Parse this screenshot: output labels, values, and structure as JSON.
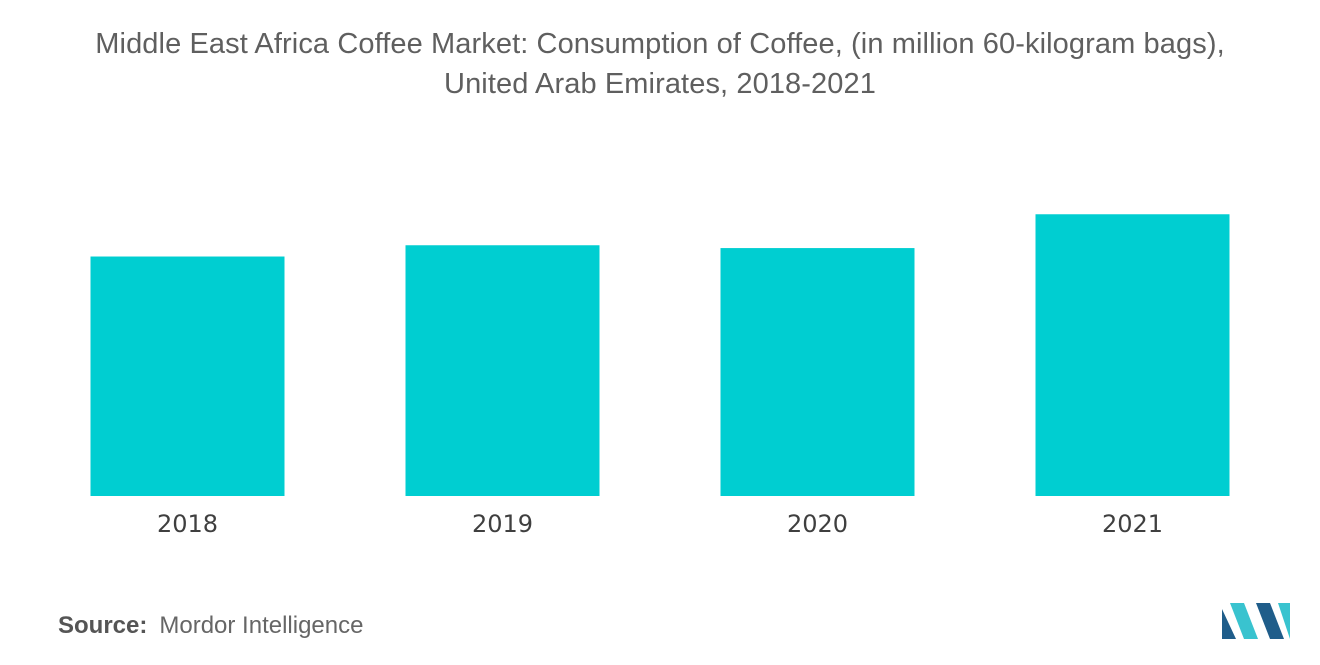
{
  "title": {
    "line1": "Middle East Africa Coffee Market: Consumption of Coffee, (in million 60-kilogram bags),",
    "line2": "United Arab Emirates, 2018-2021"
  },
  "source": {
    "label": "Source:",
    "value": "Mordor Intelligence"
  },
  "colors": {
    "bar": "#00ced1",
    "axis_text": "#3f3f3f",
    "logo_dark": "#1f5d8a",
    "logo_light": "#39c3cf"
  },
  "logo": {
    "icon": "mordor-intelligence-logo-icon"
  },
  "chart_data": {
    "type": "bar",
    "title": "Middle East Africa Coffee Market: Consumption of Coffee, (in million 60-kilogram bags), United Arab Emirates, 2018-2021",
    "categories": [
      "2018",
      "2019",
      "2020",
      "2021"
    ],
    "values": [
      0.85,
      0.89,
      0.88,
      1.0
    ],
    "xlabel": "",
    "ylabel": "",
    "ylim": [
      0,
      1.15
    ],
    "grid": false,
    "legend": "none",
    "data_labels": false
  }
}
